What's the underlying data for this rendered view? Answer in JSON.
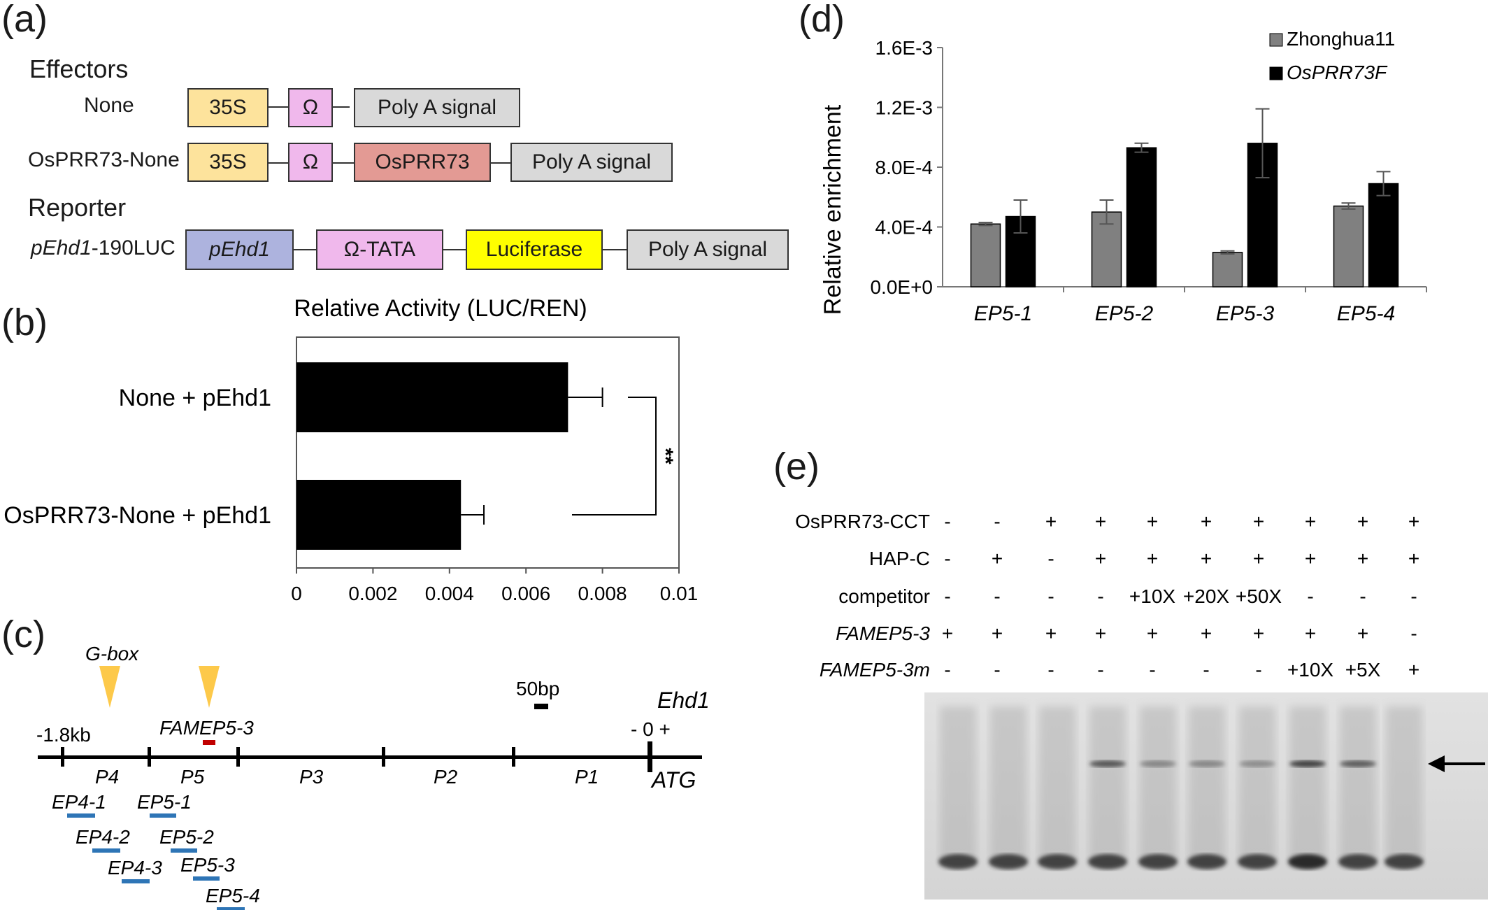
{
  "panels": {
    "a": "(a)",
    "b": "(b)",
    "c": "(c)",
    "d": "(d)",
    "e": "(e)"
  },
  "constructs": {
    "effectors_heading": "Effectors",
    "reporter_heading": "Reporter",
    "none_label": "None",
    "osprr73_none_label": "OsPRR73-None",
    "reporter_label_italic": "pEhd1",
    "reporter_label_rest": "-190LUC",
    "box_35s": "35S",
    "box_omega": "Ω",
    "box_polya": "Poly A signal",
    "box_osprr73": "OsPRR73",
    "box_pehd1": "pEhd1",
    "box_omega_tata": "Ω-TATA",
    "box_luciferase": "Luciferase",
    "colors": {
      "s35": "#fde39c",
      "omega": "#f0b8ec",
      "polya": "#d9d9d9",
      "osprr73": "#e39a94",
      "pehd1": "#adb3de",
      "luciferase": "#ffff00"
    }
  },
  "chart_b": {
    "type": "bar",
    "orientation": "horizontal",
    "title": "Relative Activity   (LUC/REN)",
    "categories": [
      "None + pEhd1",
      "OsPRR73-None + pEhd1"
    ],
    "values": [
      0.0071,
      0.0043
    ],
    "errors": [
      0.0009,
      0.0006
    ],
    "xlim": [
      0,
      0.01
    ],
    "ticks": [
      "0",
      "0.002",
      "0.004",
      "0.006",
      "0.008",
      "0.01"
    ],
    "significance": "**",
    "bar_color": "#000000"
  },
  "promoter": {
    "gbox_label": "G-box",
    "kb_label": "-1.8kb",
    "scale_label": "50bp",
    "gene_label": "Ehd1",
    "zero_label": "- 0 +",
    "atg_label": "ATG",
    "fam_probe": "FAMEP5-3",
    "regions": [
      "P4",
      "P5",
      "P3",
      "P2",
      "P1"
    ],
    "amplicons": [
      "EP4-1",
      "EP5-1",
      "EP4-2",
      "EP5-2",
      "EP4-3",
      "EP5-3",
      "EP5-4"
    ],
    "colors": {
      "gbox": "#fdc94a",
      "probe": "#c00000",
      "amplicon": "#2e75b6"
    }
  },
  "chart_data": {
    "type": "bar",
    "ylabel": "Relative enrichment",
    "categories": [
      "EP5-1",
      "EP5-2",
      "EP5-3",
      "EP5-4"
    ],
    "series": [
      {
        "name": "Zhonghua11",
        "values": [
          0.00042,
          0.0005,
          0.00023,
          0.00054
        ],
        "errors": [
          1e-05,
          8e-05,
          1e-05,
          2e-05
        ],
        "color": "#808080"
      },
      {
        "name": "OsPRR73F",
        "values": [
          0.00047,
          0.00093,
          0.00096,
          0.00069
        ],
        "errors": [
          0.00011,
          3e-05,
          0.00023,
          8e-05
        ],
        "color": "#000000"
      }
    ],
    "ylim": [
      0,
      0.0016
    ],
    "yticks": [
      "0.0E+0",
      "4.0E-4",
      "8.0E-4",
      "1.2E-3",
      "1.6E-3"
    ],
    "legend_position": "top-right"
  },
  "emsa": {
    "rows": [
      {
        "label": "OsPRR73-CCT",
        "italic": false,
        "values": [
          "-",
          "-",
          "+",
          "+",
          "+",
          "+",
          "+",
          "+",
          "+",
          "+"
        ]
      },
      {
        "label": "HAP-C",
        "italic": false,
        "values": [
          "-",
          "+",
          "-",
          "+",
          "+",
          "+",
          "+",
          "+",
          "+",
          "+"
        ]
      },
      {
        "label": "competitor",
        "italic": false,
        "values": [
          "-",
          "-",
          "-",
          "-",
          "+10X",
          "+20X",
          "+50X",
          "-",
          "-",
          "-"
        ]
      },
      {
        "label": "FAMEP5-3",
        "italic": true,
        "values": [
          "+",
          "+",
          "+",
          "+",
          "+",
          "+",
          "+",
          "+",
          "+",
          "-"
        ]
      },
      {
        "label": "FAMEP5-3m",
        "italic": true,
        "values": [
          "-",
          "-",
          "-",
          "-",
          "-",
          "-",
          "-",
          "+10X",
          "+5X",
          "+"
        ]
      }
    ]
  }
}
